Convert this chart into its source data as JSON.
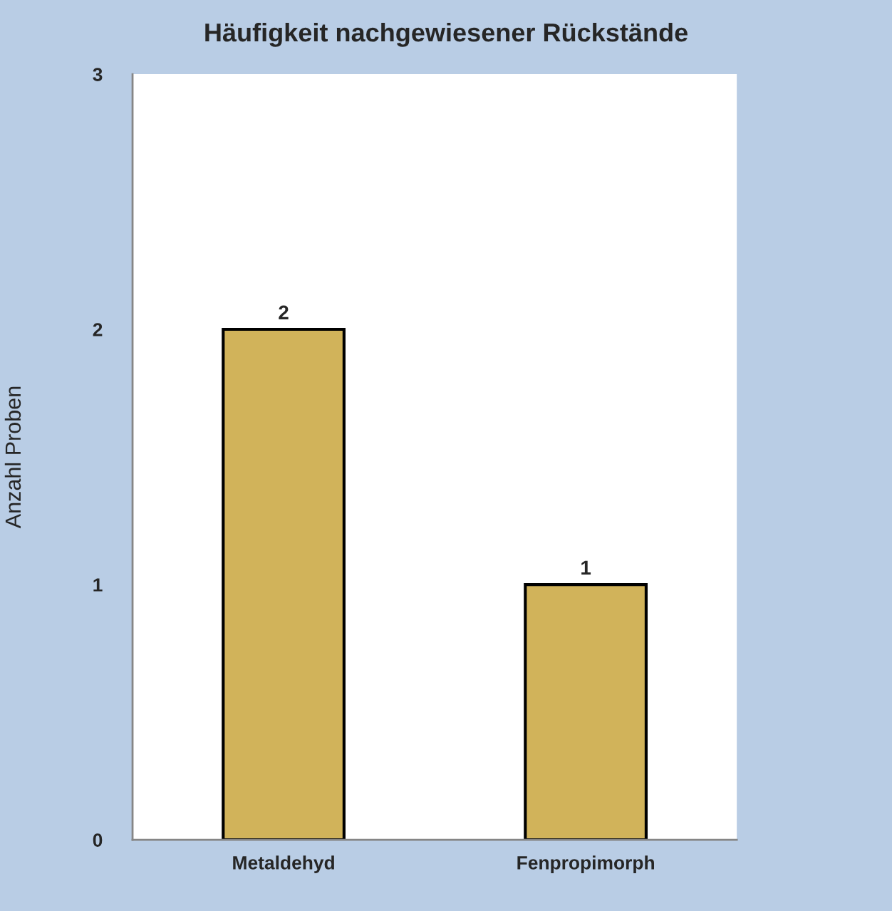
{
  "chart_data": {
    "type": "bar",
    "title": "Häufigkeit nachgewiesener Rückstände",
    "ylabel": "Anzahl Proben",
    "categories": [
      "Metaldehyd",
      "Fenpropimorph"
    ],
    "values": [
      2,
      1
    ],
    "color": "#d1b35a",
    "ylim": [
      0,
      3
    ],
    "yticks": [
      0,
      1,
      2,
      3
    ],
    "data_labels": true
  }
}
